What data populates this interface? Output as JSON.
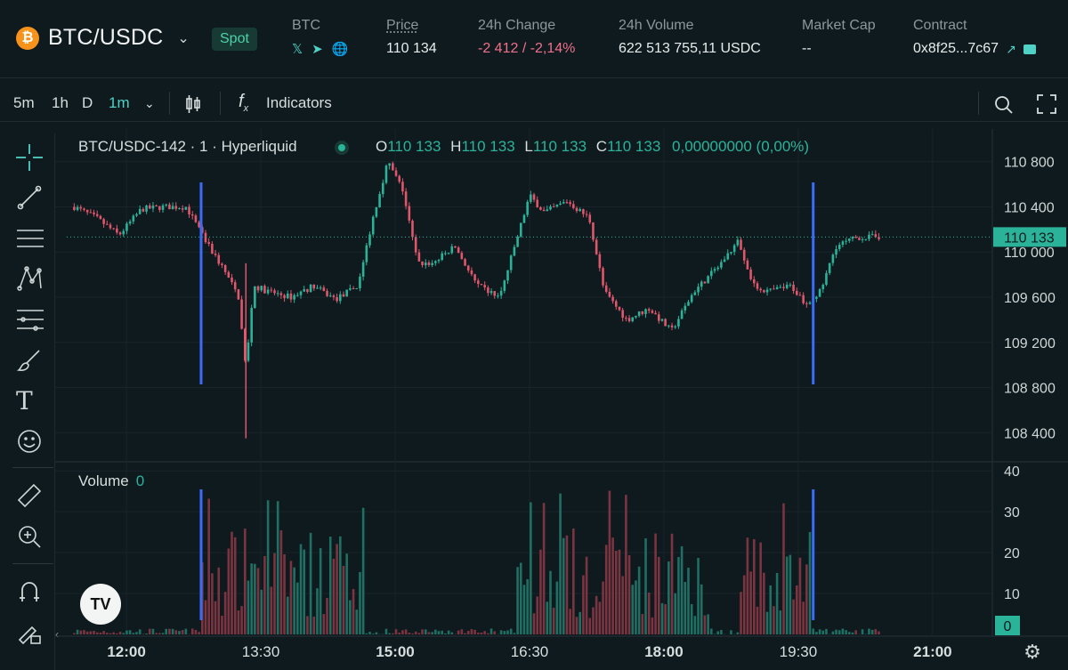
{
  "header": {
    "pair": "BTC/USDC",
    "coin_glyph": "₿",
    "badge": "Spot",
    "base": {
      "label": "BTC"
    },
    "price": {
      "label": "Price",
      "value": "110 134"
    },
    "change": {
      "label": "24h Change",
      "value": "-2 412 / -2,14%"
    },
    "volume": {
      "label": "24h Volume",
      "value": "622 513 755,11 USDC"
    },
    "market_cap": {
      "label": "Market Cap",
      "value": "--"
    },
    "contract": {
      "label": "Contract",
      "value": "0x8f25...7c67"
    }
  },
  "toolbar": {
    "intervals": [
      "5m",
      "1h",
      "D",
      "1m"
    ],
    "active_interval": "1m",
    "indicators_label": "Indicators"
  },
  "legend": {
    "title": "BTC/USDC-142 · 1 · Hyperliquid",
    "open_key": "O",
    "open": "110 133",
    "high_key": "H",
    "high": "110 133",
    "low_key": "L",
    "low": "110 133",
    "close_key": "C",
    "close": "110 133",
    "change": "0,00000000 (0,00%)"
  },
  "volume_legend": {
    "label": "Volume",
    "value": "0"
  },
  "colors": {
    "up": "#2bb39a",
    "down": "#e0566b",
    "accent": "#4fd1c5",
    "marker": "#3b6cf6",
    "bg": "#0f1a1f"
  },
  "chart_data": {
    "type": "line",
    "price_axis": {
      "ticks": [
        110800,
        110400,
        110000,
        109600,
        109200,
        108800,
        108400
      ],
      "tick_labels": [
        "110 800",
        "110 400",
        "110 000",
        "109 600",
        "109 200",
        "108 800",
        "108 400"
      ],
      "current_label": "110 133",
      "ylim": [
        108150,
        111050
      ]
    },
    "volume_axis": {
      "ticks": [
        40,
        30,
        20,
        10
      ],
      "current_label": "0",
      "ylim": [
        0,
        42
      ]
    },
    "time_axis": {
      "labels": [
        "12:00",
        "13:30",
        "15:00",
        "16:30",
        "18:00",
        "19:30",
        "21:00"
      ],
      "bold": [
        "12:00",
        "15:00",
        "18:00",
        "21:00"
      ]
    },
    "price_series": {
      "name": "BTC/USDC",
      "t": [
        "11:25",
        "11:40",
        "11:55",
        "12:10",
        "12:25",
        "12:40",
        "12:55",
        "13:05",
        "13:15",
        "13:20",
        "13:25",
        "13:35",
        "13:50",
        "14:05",
        "14:20",
        "14:35",
        "14:45",
        "14:55",
        "15:05",
        "15:15",
        "15:25",
        "15:40",
        "15:55",
        "16:10",
        "16:20",
        "16:30",
        "16:40",
        "16:55",
        "17:10",
        "17:20",
        "17:35",
        "17:50",
        "18:05",
        "18:20",
        "18:35",
        "18:50",
        "19:00",
        "19:10",
        "19:25",
        "19:35",
        "19:45",
        "19:55",
        "20:10",
        "20:25"
      ],
      "close": [
        110400,
        110300,
        110150,
        110380,
        110400,
        110400,
        110050,
        109850,
        109600,
        108950,
        109700,
        109650,
        109600,
        109700,
        109580,
        109700,
        110300,
        110800,
        110550,
        109900,
        109900,
        110050,
        109700,
        109600,
        110050,
        110500,
        110350,
        110450,
        110300,
        109650,
        109400,
        109500,
        109300,
        109650,
        109850,
        110100,
        109700,
        109650,
        109700,
        109550,
        109650,
        110050,
        110130,
        110133
      ]
    },
    "markers": [
      {
        "t": "12:50"
      },
      {
        "t": "19:40"
      }
    ]
  }
}
